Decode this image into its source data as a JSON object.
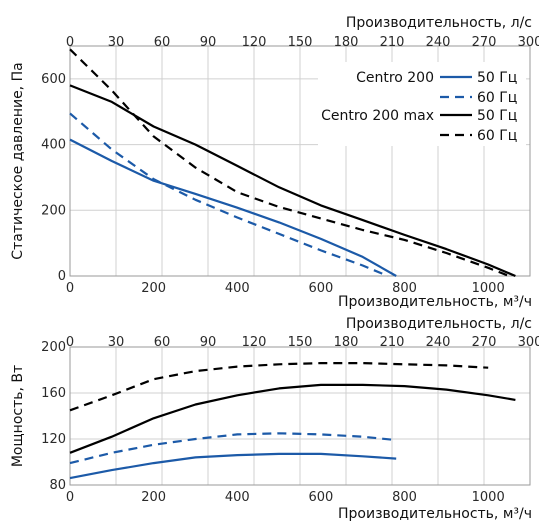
{
  "chart_data": [
    {
      "type": "line",
      "panel": "pressure",
      "xlabel": "Производительность, м³/ч",
      "x2label": "Производительность, л/с",
      "ylabel": "Статическое давление, Па",
      "xlim": [
        0,
        1100
      ],
      "x2lim": [
        0,
        300
      ],
      "ylim": [
        0,
        700
      ],
      "x_ticks": [
        0,
        200,
        400,
        600,
        800,
        1000
      ],
      "x2_ticks": [
        0,
        30,
        60,
        90,
        120,
        150,
        180,
        210,
        240,
        270,
        300
      ],
      "y_ticks": [
        0,
        200,
        400,
        600
      ],
      "grid": true,
      "legend": {
        "placement": "top-right",
        "groups": [
          {
            "label": "Centro 200",
            "entries": [
              {
                "label": "50 Гц",
                "series": 0
              },
              {
                "label": "60 Гц",
                "series": 1
              }
            ]
          },
          {
            "label": "Centro 200 max",
            "entries": [
              {
                "label": "50 Гц",
                "series": 2
              },
              {
                "label": "60 Гц",
                "series": 3
              }
            ]
          }
        ]
      },
      "series": [
        {
          "color": "#1c5aa8",
          "dash": "solid",
          "x": [
            0,
            100,
            200,
            300,
            400,
            500,
            600,
            700,
            780
          ],
          "y": [
            415,
            350,
            290,
            250,
            208,
            163,
            113,
            58,
            0
          ]
        },
        {
          "color": "#1c5aa8",
          "dash": "dashed",
          "x": [
            0,
            100,
            200,
            300,
            400,
            500,
            600,
            700,
            760
          ],
          "y": [
            495,
            385,
            295,
            232,
            178,
            128,
            78,
            32,
            0
          ]
        },
        {
          "color": "#000000",
          "dash": "solid",
          "x": [
            0,
            100,
            200,
            300,
            400,
            500,
            600,
            700,
            800,
            900,
            1000,
            1065
          ],
          "y": [
            580,
            530,
            455,
            400,
            335,
            270,
            215,
            170,
            125,
            82,
            35,
            0
          ]
        },
        {
          "color": "#000000",
          "dash": "dashed",
          "x": [
            0,
            100,
            200,
            300,
            400,
            500,
            600,
            700,
            800,
            900,
            1000,
            1050
          ],
          "y": [
            690,
            565,
            425,
            330,
            255,
            210,
            175,
            140,
            110,
            70,
            25,
            0
          ]
        }
      ]
    },
    {
      "type": "line",
      "panel": "power",
      "xlabel": "Производительность, м³/ч",
      "x2label": "Производительность, л/с",
      "ylabel": "Мощность, Вт",
      "xlim": [
        0,
        1100
      ],
      "x2lim": [
        0,
        300
      ],
      "ylim": [
        80,
        200
      ],
      "x_ticks": [
        0,
        200,
        400,
        600,
        800,
        1000
      ],
      "x2_ticks": [
        0,
        30,
        60,
        90,
        120,
        150,
        180,
        210,
        240,
        270,
        300
      ],
      "y_ticks": [
        80,
        120,
        160,
        200
      ],
      "grid": true,
      "series": [
        {
          "color": "#1c5aa8",
          "dash": "solid",
          "x": [
            0,
            100,
            200,
            300,
            400,
            500,
            600,
            700,
            780
          ],
          "y": [
            86,
            93,
            99,
            104,
            106,
            107,
            107,
            105,
            103
          ]
        },
        {
          "color": "#1c5aa8",
          "dash": "dashed",
          "x": [
            0,
            100,
            200,
            300,
            400,
            500,
            600,
            700,
            780
          ],
          "y": [
            99,
            108,
            115,
            120,
            124,
            125,
            124,
            122,
            119
          ]
        },
        {
          "color": "#000000",
          "dash": "solid",
          "x": [
            0,
            100,
            200,
            300,
            400,
            500,
            600,
            700,
            800,
            900,
            1000,
            1065
          ],
          "y": [
            108,
            122,
            138,
            150,
            158,
            164,
            167,
            167,
            166,
            163,
            158,
            154
          ]
        },
        {
          "color": "#000000",
          "dash": "dashed",
          "x": [
            0,
            100,
            200,
            300,
            400,
            500,
            600,
            700,
            800,
            900,
            1000
          ],
          "y": [
            145,
            158,
            172,
            179,
            183,
            185,
            186,
            186,
            185,
            184,
            182
          ]
        }
      ]
    }
  ]
}
